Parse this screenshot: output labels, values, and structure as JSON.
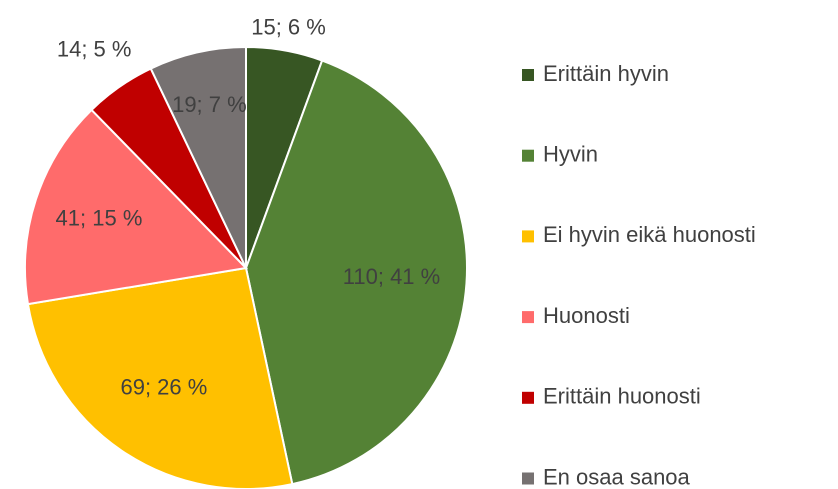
{
  "chart_data": {
    "type": "pie",
    "categories": [
      "Erittäin hyvin",
      "Hyvin",
      "Ei hyvin eikä huonosti",
      "Huonosti",
      "Erittäin huonosti",
      "En osaa sanoa"
    ],
    "values": [
      15,
      110,
      69,
      41,
      14,
      19
    ],
    "value_labels": [
      "15; 6 %",
      "110; 41 %",
      "69; 26 %",
      "41; 15 %",
      "14; 5 %",
      "19; 7 %"
    ],
    "colors": [
      "#375623",
      "#548235",
      "#ffc000",
      "#ff6b6b",
      "#c00000",
      "#767171"
    ],
    "legend": "right"
  }
}
